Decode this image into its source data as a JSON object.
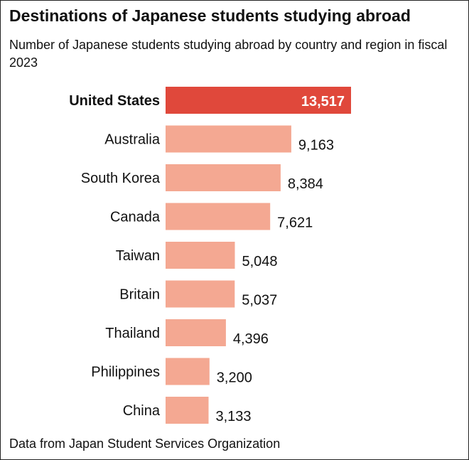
{
  "title": "Destinations of Japanese students studying abroad",
  "subtitle": "Number of Japanese students studying abroad by country and region in fiscal 2023",
  "source": "Data from Japan Student Services Organization",
  "colors": {
    "highlight": "#e0483b",
    "bar": "#f4a892",
    "text": "#111111",
    "highlight_label": "#ffffff"
  },
  "chart_data": {
    "type": "bar",
    "orientation": "horizontal",
    "title": "Destinations of Japanese students studying abroad",
    "subtitle": "Number of Japanese students studying abroad by country and region in fiscal 2023",
    "categories": [
      "United States",
      "Australia",
      "South Korea",
      "Canada",
      "Taiwan",
      "Britain",
      "Thailand",
      "Philippines",
      "China"
    ],
    "values": [
      13517,
      9163,
      8384,
      7621,
      5048,
      5037,
      4396,
      3200,
      3133
    ],
    "value_labels": [
      "13,517",
      "9,163",
      "8,384",
      "7,621",
      "5,048",
      "5,037",
      "4,396",
      "3,200",
      "3,133"
    ],
    "highlight_index": 0,
    "xlim": [
      0,
      13517
    ],
    "grid": false,
    "legend": "none",
    "xlabel": "",
    "ylabel": ""
  }
}
